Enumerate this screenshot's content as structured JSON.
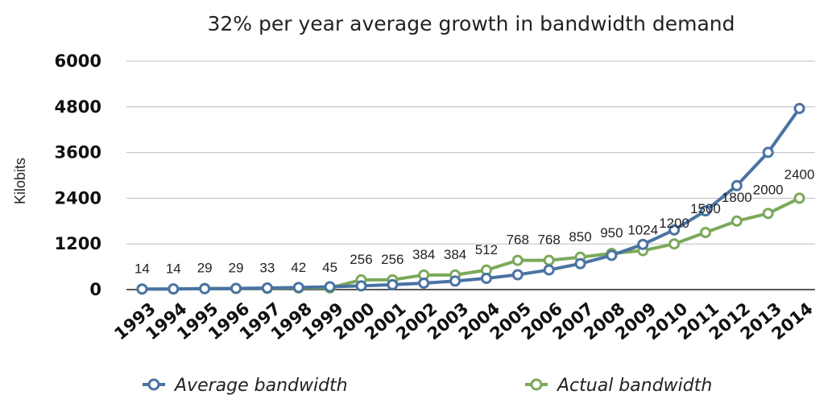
{
  "chart_data": {
    "type": "line",
    "title": "32% per year average growth in bandwidth demand",
    "ylabel": "Kilobits",
    "xlabel": "",
    "ylim": [
      0,
      6000
    ],
    "yticks": [
      "0",
      "1200",
      "2400",
      "3600",
      "4800",
      "6000"
    ],
    "grid": true,
    "legend_position": "bottom",
    "categories": [
      "1993",
      "1994",
      "1995",
      "1996",
      "1997",
      "1998",
      "1999",
      "2000",
      "2001",
      "2002",
      "2003",
      "2004",
      "2005",
      "2006",
      "2007",
      "2008",
      "2009",
      "2010",
      "2011",
      "2012",
      "2013",
      "2014"
    ],
    "series": [
      {
        "name": "Average bandwidth",
        "color": "#4a73a3",
        "values": [
          14,
          18,
          24,
          32,
          42,
          56,
          74,
          97,
          129,
          170,
          224,
          296,
          391,
          516,
          681,
          899,
          1187,
          1567,
          2068,
          2730,
          3604,
          4757
        ]
      },
      {
        "name": "Actual bandwidth",
        "color": "#7ba95a",
        "values": [
          14,
          14,
          29,
          29,
          33,
          42,
          45,
          256,
          256,
          384,
          384,
          512,
          768,
          768,
          850,
          950,
          1024,
          1200,
          1500,
          1800,
          2000,
          2400
        ],
        "data_labels": [
          "14",
          "14",
          "29",
          "29",
          "33",
          "42",
          "45",
          "256",
          "256",
          "384",
          "384",
          "512",
          "768",
          "768",
          "850",
          "950",
          "1024",
          "1200",
          "1500",
          "1800",
          "2000",
          "2400"
        ]
      }
    ]
  }
}
